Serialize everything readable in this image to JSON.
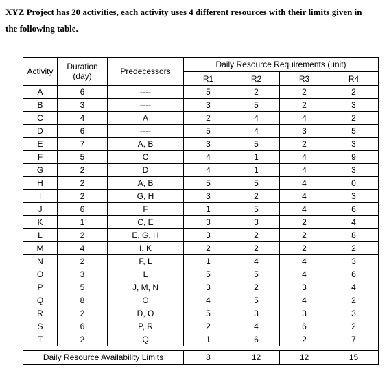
{
  "intro": {
    "line1": "XYZ Project has 20 activities, each activity uses 4 different resources with their limits given in",
    "line2": "the following table."
  },
  "table": {
    "headers": {
      "activity": "Activity",
      "duration_line1": "Duration",
      "duration_line2": "(day)",
      "predecessors": "Predecessors",
      "daily_requirements": "Daily Resource Requirements (unit)",
      "resources": [
        "R1",
        "R2",
        "R3",
        "R4"
      ]
    },
    "rows": [
      {
        "activity": "A",
        "duration": "6",
        "predecessors": "----",
        "r": [
          "5",
          "2",
          "2",
          "2"
        ]
      },
      {
        "activity": "B",
        "duration": "3",
        "predecessors": "----",
        "r": [
          "3",
          "5",
          "2",
          "3"
        ]
      },
      {
        "activity": "C",
        "duration": "4",
        "predecessors": "A",
        "r": [
          "2",
          "4",
          "4",
          "2"
        ]
      },
      {
        "activity": "D",
        "duration": "6",
        "predecessors": "----",
        "r": [
          "5",
          "4",
          "3",
          "5"
        ]
      },
      {
        "activity": "E",
        "duration": "7",
        "predecessors": "A, B",
        "r": [
          "3",
          "5",
          "2",
          "3"
        ]
      },
      {
        "activity": "F",
        "duration": "5",
        "predecessors": "C",
        "r": [
          "4",
          "1",
          "4",
          "9"
        ]
      },
      {
        "activity": "G",
        "duration": "2",
        "predecessors": "D",
        "r": [
          "4",
          "1",
          "4",
          "3"
        ]
      },
      {
        "activity": "H",
        "duration": "2",
        "predecessors": "A, B",
        "r": [
          "5",
          "5",
          "4",
          "0"
        ]
      },
      {
        "activity": "I",
        "duration": "2",
        "predecessors": "G, H",
        "r": [
          "3",
          "2",
          "4",
          "3"
        ]
      },
      {
        "activity": "J",
        "duration": "6",
        "predecessors": "F",
        "r": [
          "1",
          "5",
          "4",
          "6"
        ]
      },
      {
        "activity": "K",
        "duration": "1",
        "predecessors": "C, E",
        "r": [
          "3",
          "3",
          "2",
          "4"
        ]
      },
      {
        "activity": "L",
        "duration": "2",
        "predecessors": "E, G, H",
        "r": [
          "3",
          "2",
          "2",
          "8"
        ]
      },
      {
        "activity": "M",
        "duration": "4",
        "predecessors": "I, K",
        "r": [
          "2",
          "2",
          "2",
          "2"
        ]
      },
      {
        "activity": "N",
        "duration": "2",
        "predecessors": "F, L",
        "r": [
          "1",
          "4",
          "4",
          "3"
        ]
      },
      {
        "activity": "O",
        "duration": "3",
        "predecessors": "L",
        "r": [
          "5",
          "5",
          "4",
          "6"
        ]
      },
      {
        "activity": "P",
        "duration": "5",
        "predecessors": "J, M, N",
        "r": [
          "3",
          "2",
          "3",
          "4"
        ]
      },
      {
        "activity": "Q",
        "duration": "8",
        "predecessors": "O",
        "r": [
          "4",
          "5",
          "4",
          "2"
        ]
      },
      {
        "activity": "R",
        "duration": "2",
        "predecessors": "D, O",
        "r": [
          "5",
          "3",
          "3",
          "3"
        ]
      },
      {
        "activity": "S",
        "duration": "6",
        "predecessors": "P, R",
        "r": [
          "2",
          "4",
          "6",
          "2"
        ]
      },
      {
        "activity": "T",
        "duration": "2",
        "predecessors": "Q",
        "r": [
          "1",
          "6",
          "2",
          "7"
        ]
      }
    ],
    "limits": {
      "label": "Daily Resource Availability Limits",
      "values": [
        "8",
        "12",
        "12",
        "15"
      ]
    }
  }
}
